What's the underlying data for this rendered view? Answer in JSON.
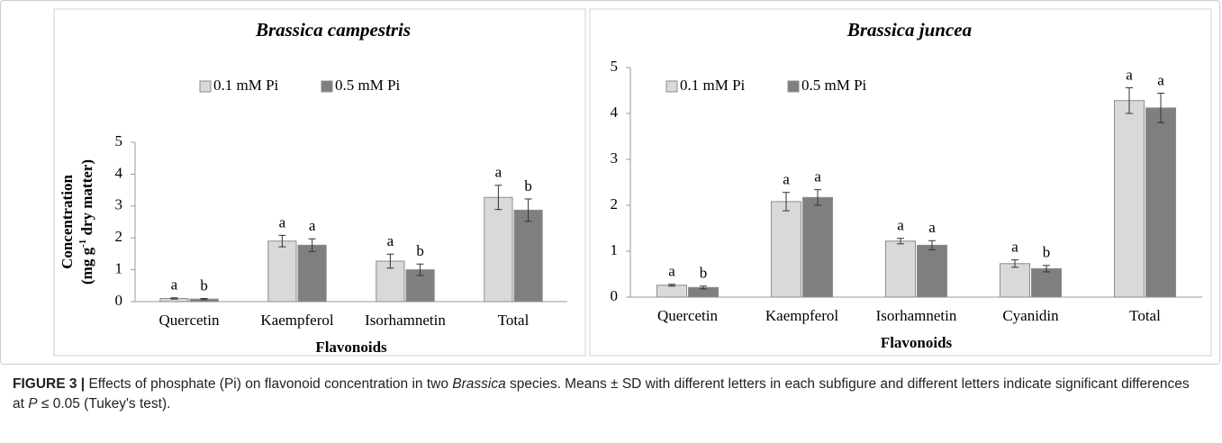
{
  "chart_data": [
    {
      "type": "bar",
      "title": "Brassica campestris",
      "xlabel": "Flavonoids",
      "ylabel": [
        "Concentration",
        "(mg g",
        "-1",
        " dry matter)"
      ],
      "categories": [
        "Quercetin",
        "Kaempferol",
        "Isorhamnetin",
        "Total"
      ],
      "series": [
        {
          "name": "0.1 mM Pi",
          "color": "#d9d9d9",
          "values": [
            0.1,
            1.9,
            1.27,
            3.27
          ],
          "errors": [
            0.02,
            0.18,
            0.22,
            0.38
          ],
          "letters": [
            "a",
            "a",
            "a",
            "a"
          ]
        },
        {
          "name": "0.5 mM Pi",
          "color": "#7f7f7f",
          "values": [
            0.08,
            1.77,
            1.0,
            2.87
          ],
          "errors": [
            0.02,
            0.2,
            0.18,
            0.35
          ],
          "letters": [
            "b",
            "a",
            "b",
            "b"
          ]
        }
      ],
      "ylim": [
        0,
        5
      ],
      "yticks": [
        0,
        1,
        2,
        3,
        4,
        5
      ],
      "grid": false
    },
    {
      "type": "bar",
      "title": "Brassica juncea",
      "xlabel": "Flavonoids",
      "categories": [
        "Quercetin",
        "Kaempferol",
        "Isorhamnetin",
        "Cyanidin",
        "Total"
      ],
      "series": [
        {
          "name": "0.1 mM Pi",
          "color": "#d9d9d9",
          "values": [
            0.26,
            2.08,
            1.22,
            0.73,
            4.28
          ],
          "errors": [
            0.02,
            0.2,
            0.06,
            0.08,
            0.28
          ],
          "letters": [
            "a",
            "a",
            "a",
            "a",
            "a"
          ]
        },
        {
          "name": "0.5 mM Pi",
          "color": "#7f7f7f",
          "values": [
            0.21,
            2.17,
            1.13,
            0.62,
            4.12
          ],
          "errors": [
            0.03,
            0.17,
            0.1,
            0.07,
            0.32
          ],
          "letters": [
            "b",
            "a",
            "a",
            "b",
            "a"
          ]
        }
      ],
      "ylim": [
        0,
        5
      ],
      "yticks": [
        0,
        1,
        2,
        3,
        4,
        5
      ],
      "grid": false
    }
  ],
  "caption": {
    "label": "FIGURE 3 |",
    "parts": [
      " Effects of phosphate (Pi) on flavonoid concentration in two ",
      "Brassica",
      " species. Means ± SD with different letters in each subfigure and different letters indicate significant differences at ",
      "P",
      " ≤ 0.05 (Tukey's test)."
    ]
  }
}
